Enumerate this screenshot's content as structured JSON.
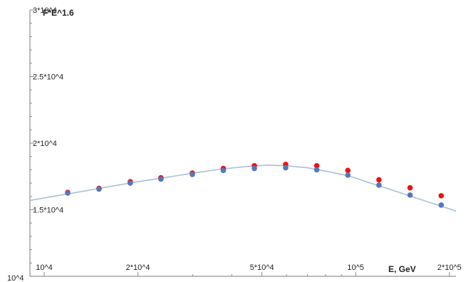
{
  "chart_data": {
    "type": "scatter",
    "title": "",
    "xlabel": "E, GeV",
    "ylabel": "F*E^1.6",
    "x_scale": "log",
    "xlim": [
      9000,
      210000
    ],
    "ylim": [
      10000,
      30000
    ],
    "x_tick_labels": [
      {
        "value": 10000,
        "label": "10^4"
      },
      {
        "value": 20000,
        "label": "2*10^4"
      },
      {
        "value": 50000,
        "label": "5*10^4"
      },
      {
        "value": 100000,
        "label": "10^5"
      },
      {
        "value": 200000,
        "label": "2*10^5"
      }
    ],
    "y_tick_labels": [
      {
        "value": 15000,
        "label": "1.5*10^4"
      },
      {
        "value": 20000,
        "label": "2*10^4"
      },
      {
        "value": 25000,
        "label": "2.5*10^4"
      },
      {
        "value": 30000,
        "label": "3*10^4"
      }
    ],
    "corner_label": "10^4",
    "series": [
      {
        "color": "#ee1111",
        "points": [
          {
            "x": 11900,
            "y": 16300
          },
          {
            "x": 15000,
            "y": 16600
          },
          {
            "x": 18900,
            "y": 17100
          },
          {
            "x": 23700,
            "y": 17400
          },
          {
            "x": 29900,
            "y": 17750
          },
          {
            "x": 37600,
            "y": 18100
          },
          {
            "x": 47300,
            "y": 18300
          },
          {
            "x": 59600,
            "y": 18400
          },
          {
            "x": 75000,
            "y": 18300
          },
          {
            "x": 94400,
            "y": 17950
          },
          {
            "x": 118800,
            "y": 17250
          },
          {
            "x": 149500,
            "y": 16650
          },
          {
            "x": 188200,
            "y": 16050
          }
        ]
      },
      {
        "color": "#5577bb",
        "points": [
          {
            "x": 11900,
            "y": 16250
          },
          {
            "x": 15000,
            "y": 16550
          },
          {
            "x": 18900,
            "y": 17000
          },
          {
            "x": 23700,
            "y": 17300
          },
          {
            "x": 29900,
            "y": 17650
          },
          {
            "x": 37600,
            "y": 17950
          },
          {
            "x": 47300,
            "y": 18100
          },
          {
            "x": 59600,
            "y": 18150
          },
          {
            "x": 75000,
            "y": 18000
          },
          {
            "x": 94400,
            "y": 17600
          },
          {
            "x": 118800,
            "y": 16850
          },
          {
            "x": 149500,
            "y": 16100
          },
          {
            "x": 188200,
            "y": 15350
          }
        ]
      },
      {
        "color": "#a9bfd6",
        "style": "line",
        "points": [
          {
            "x": 9000,
            "y": 15700
          },
          {
            "x": 12000,
            "y": 16200
          },
          {
            "x": 15000,
            "y": 16600
          },
          {
            "x": 20000,
            "y": 17100
          },
          {
            "x": 25000,
            "y": 17450
          },
          {
            "x": 30000,
            "y": 17750
          },
          {
            "x": 37000,
            "y": 18050
          },
          {
            "x": 45000,
            "y": 18250
          },
          {
            "x": 52000,
            "y": 18350
          },
          {
            "x": 60000,
            "y": 18300
          },
          {
            "x": 70000,
            "y": 18150
          },
          {
            "x": 80000,
            "y": 17900
          },
          {
            "x": 95000,
            "y": 17550
          },
          {
            "x": 110000,
            "y": 17050
          },
          {
            "x": 130000,
            "y": 16500
          },
          {
            "x": 160000,
            "y": 15800
          },
          {
            "x": 210000,
            "y": 14900
          }
        ]
      }
    ],
    "grid": false,
    "legend": "none"
  }
}
